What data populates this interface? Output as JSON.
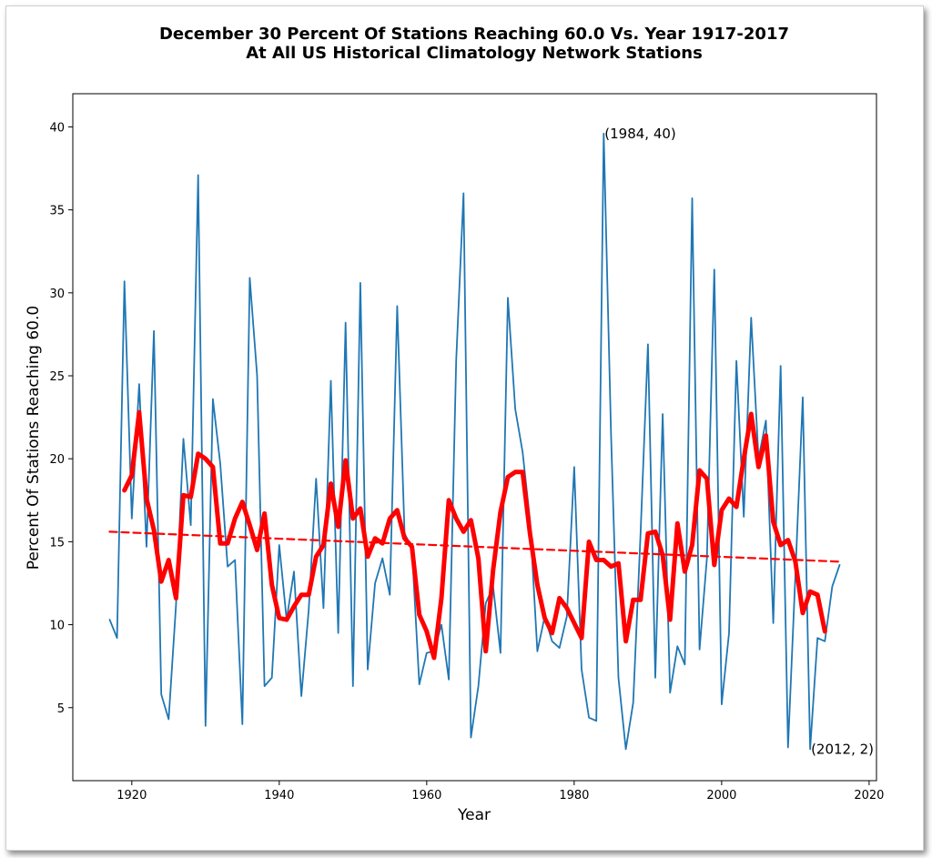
{
  "chart_data": {
    "type": "line",
    "title": "December 30 Percent Of Stations Reaching 60.0 Vs. Year 1917-2017",
    "subtitle": "At All US Historical Climatology Network Stations",
    "xlabel": "Year",
    "ylabel": "Percent Of Stations Reaching 60.0",
    "xlim": [
      1912,
      2021
    ],
    "ylim": [
      0.6,
      42
    ],
    "xticks": [
      1920,
      1940,
      1960,
      1980,
      2000,
      2020
    ],
    "yticks": [
      5,
      10,
      15,
      20,
      25,
      30,
      35,
      40
    ],
    "grid": false,
    "series": [
      {
        "role": "annual",
        "color": "#1f77b4",
        "x": [
          1917,
          1918,
          1919,
          1920,
          1921,
          1922,
          1923,
          1924,
          1925,
          1926,
          1927,
          1928,
          1929,
          1930,
          1931,
          1932,
          1933,
          1934,
          1935,
          1936,
          1937,
          1938,
          1939,
          1940,
          1941,
          1942,
          1943,
          1944,
          1945,
          1946,
          1947,
          1948,
          1949,
          1950,
          1951,
          1952,
          1953,
          1954,
          1955,
          1956,
          1957,
          1958,
          1959,
          1960,
          1961,
          1962,
          1963,
          1964,
          1965,
          1966,
          1967,
          1968,
          1969,
          1970,
          1971,
          1972,
          1973,
          1974,
          1975,
          1976,
          1977,
          1978,
          1979,
          1980,
          1981,
          1982,
          1983,
          1984,
          1985,
          1986,
          1987,
          1988,
          1989,
          1990,
          1991,
          1992,
          1993,
          1994,
          1995,
          1996,
          1997,
          1998,
          1999,
          2000,
          2001,
          2002,
          2003,
          2004,
          2005,
          2006,
          2007,
          2008,
          2009,
          2010,
          2011,
          2012,
          2013,
          2014,
          2015,
          2016
        ],
        "y": [
          10.3,
          9.2,
          30.7,
          16.4,
          24.5,
          14.7,
          27.7,
          5.8,
          4.3,
          11.2,
          21.2,
          16.0,
          37.1,
          3.9,
          23.6,
          19.7,
          13.5,
          13.9,
          4.0,
          30.9,
          25.0,
          6.3,
          6.8,
          14.8,
          10.3,
          13.2,
          5.7,
          10.9,
          18.8,
          11.0,
          24.7,
          9.5,
          28.2,
          6.3,
          30.6,
          7.3,
          12.5,
          14.0,
          11.8,
          29.2,
          15.5,
          14.6,
          6.4,
          8.3,
          8.4,
          10.0,
          6.7,
          25.9,
          36.0,
          3.2,
          6.3,
          11.3,
          12.3,
          8.3,
          29.7,
          23.0,
          20.4,
          16.3,
          8.4,
          10.5,
          9.0,
          8.6,
          10.5,
          19.5,
          7.3,
          4.4,
          4.2,
          39.6,
          21.4,
          6.8,
          2.5,
          5.3,
          15.5,
          26.9,
          6.8,
          22.7,
          5.9,
          8.7,
          7.6,
          35.7,
          8.5,
          14.0,
          31.4,
          5.2,
          9.5,
          25.9,
          16.5,
          28.5,
          20.0,
          22.3,
          10.1,
          25.6,
          2.6,
          13.0,
          23.7,
          2.5,
          9.2,
          9.0,
          12.3,
          13.6
        ]
      },
      {
        "role": "5-year moving average",
        "color": "#ff0000",
        "x": [
          1919,
          1920,
          1921,
          1922,
          1923,
          1924,
          1925,
          1926,
          1927,
          1928,
          1929,
          1930,
          1931,
          1932,
          1933,
          1934,
          1935,
          1936,
          1937,
          1938,
          1939,
          1940,
          1941,
          1942,
          1943,
          1944,
          1945,
          1946,
          1947,
          1948,
          1949,
          1950,
          1951,
          1952,
          1953,
          1954,
          1955,
          1956,
          1957,
          1958,
          1959,
          1960,
          1961,
          1962,
          1963,
          1964,
          1965,
          1966,
          1967,
          1968,
          1969,
          1970,
          1971,
          1972,
          1973,
          1974,
          1975,
          1976,
          1977,
          1978,
          1979,
          1980,
          1981,
          1982,
          1983,
          1984,
          1985,
          1986,
          1987,
          1988,
          1989,
          1990,
          1991,
          1992,
          1993,
          1994,
          1995,
          1996,
          1997,
          1998,
          1999,
          2000,
          2001,
          2002,
          2003,
          2004,
          2005,
          2006,
          2007,
          2008,
          2009,
          2010,
          2011,
          2012,
          2013,
          2014
        ],
        "y": [
          18.1,
          19.0,
          22.8,
          17.6,
          15.7,
          12.6,
          13.9,
          11.6,
          17.8,
          17.7,
          20.3,
          20.0,
          19.5,
          14.9,
          14.9,
          16.4,
          17.4,
          16.0,
          14.5,
          16.7,
          12.4,
          10.4,
          10.3,
          11.1,
          11.8,
          11.8,
          14.1,
          14.8,
          18.5,
          15.9,
          19.9,
          16.4,
          17.0,
          14.1,
          15.2,
          14.9,
          16.4,
          16.9,
          15.2,
          14.7,
          10.6,
          9.6,
          8.0,
          11.6,
          17.5,
          16.4,
          15.6,
          16.3,
          14.0,
          8.4,
          13.3,
          16.8,
          18.9,
          19.2,
          19.2,
          15.5,
          12.4,
          10.4,
          9.5,
          11.6,
          11.0,
          10.1,
          9.2,
          15.0,
          13.9,
          13.9,
          13.5,
          13.7,
          9.0,
          11.5,
          11.5,
          15.5,
          15.6,
          14.2,
          10.3,
          16.1,
          13.2,
          14.8,
          19.3,
          18.8,
          13.6,
          16.9,
          17.6,
          17.1,
          20.0,
          22.7,
          19.5,
          21.4,
          16.2,
          14.8,
          15.1,
          13.8,
          10.7,
          12.0,
          11.8,
          9.6
        ]
      },
      {
        "role": "linear trend",
        "color": "#ff0000",
        "dashed": true,
        "x": [
          1917,
          2016
        ],
        "y": [
          15.6,
          13.8
        ]
      }
    ],
    "annotations": [
      {
        "text": "(1984, 40)",
        "x": 1984,
        "y": 39.6
      },
      {
        "text": "(2012, 2)",
        "x": 2012,
        "y": 2.5
      }
    ]
  }
}
